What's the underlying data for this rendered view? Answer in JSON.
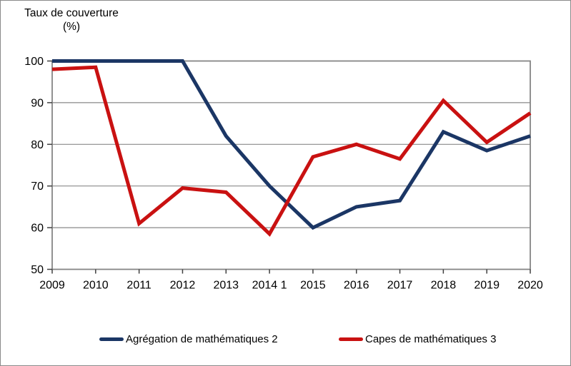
{
  "title": {
    "line1": "Taux de couverture",
    "line2": "(%)"
  },
  "chart_data": {
    "type": "line",
    "title": "Taux de couverture (%)",
    "x": [
      "2009",
      "2010",
      "2011",
      "2012",
      "2013",
      "2014 1",
      "2015",
      "2016",
      "2017",
      "2018",
      "2019",
      "2020"
    ],
    "series": [
      {
        "name": "Agrégation de mathématiques 2",
        "color": "#1B3665",
        "values": [
          100,
          100,
          100,
          100,
          82,
          70,
          60,
          65,
          66.5,
          83,
          78.5,
          82
        ]
      },
      {
        "name": "Capes de mathématiques 3",
        "color": "#C91111",
        "values": [
          98,
          98.5,
          61,
          69.5,
          68.5,
          58.5,
          77,
          80,
          76.5,
          90.5,
          80.5,
          87.5
        ]
      }
    ],
    "xlabel": "",
    "ylabel": "Taux de couverture (%)",
    "ylim": [
      50,
      100
    ],
    "yticks": [
      50,
      60,
      70,
      80,
      90,
      100
    ],
    "grid": true,
    "legend_position": "bottom"
  },
  "colors": {
    "series_blue": "#1B3665",
    "series_red": "#C91111",
    "gridline": "#898989",
    "plot_frame": "#858585",
    "axis_tick": "#404040",
    "page_border": "#8a8a8a"
  }
}
